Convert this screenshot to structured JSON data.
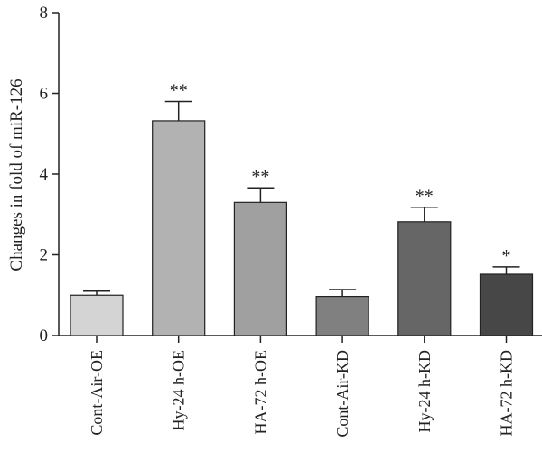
{
  "chart_data": {
    "type": "bar",
    "title": "",
    "xlabel": "",
    "ylabel": "Changes in fold of miR-126",
    "ylim": [
      0,
      8
    ],
    "yticks": [
      0,
      2,
      4,
      6,
      8
    ],
    "grid": false,
    "categories": [
      "Cont-Air-OE",
      "Hy-24 h-OE",
      "HA-72 h-OE",
      "Cont-Air-KD",
      "Hy-24 h-KD",
      "HA-72 h-KD"
    ],
    "values": [
      1.0,
      5.32,
      3.3,
      0.97,
      2.82,
      1.52
    ],
    "errors": [
      0.1,
      0.48,
      0.36,
      0.17,
      0.36,
      0.18
    ],
    "significance": [
      "",
      "**",
      "**",
      "",
      "**",
      "*"
    ],
    "bar_colors": [
      "#d4d4d4",
      "#b2b2b2",
      "#a0a0a0",
      "#808080",
      "#666666",
      "#474747"
    ]
  }
}
